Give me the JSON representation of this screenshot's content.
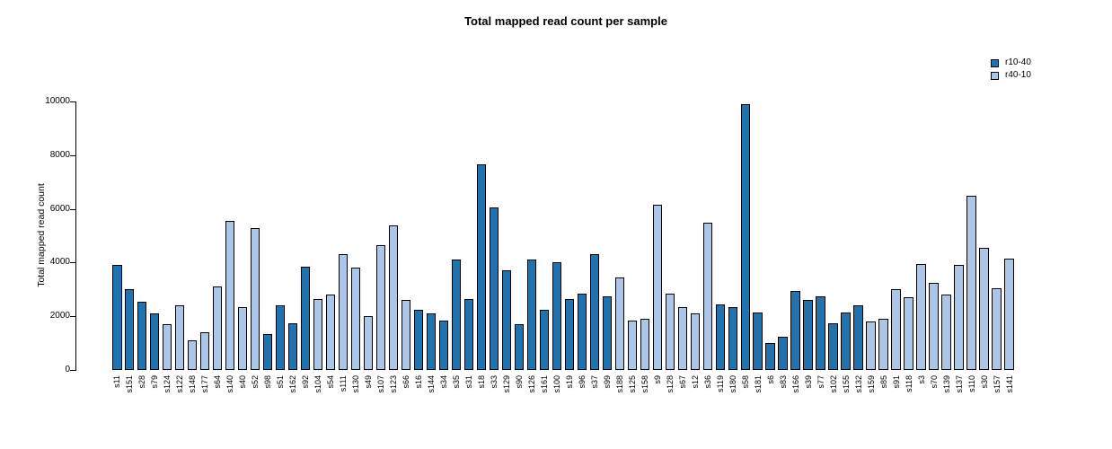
{
  "title": "Total mapped read count per sample",
  "y_axis": {
    "label": "Total mapped read count",
    "ticks": [
      0,
      2000,
      4000,
      6000,
      8000,
      10000
    ]
  },
  "chart_data": {
    "type": "bar",
    "title": "Total mapped read count per sample",
    "xlabel": "",
    "ylabel": "Total mapped read count",
    "ylim": [
      0,
      10000
    ],
    "yticks": [
      0,
      2000,
      4000,
      6000,
      8000,
      10000
    ],
    "grid": false,
    "legend_position": "top-right",
    "series": [
      {
        "name": "r10-40",
        "color": "#2173b0"
      },
      {
        "name": "r40-10",
        "color": "#abc6e8"
      }
    ],
    "bars": [
      {
        "label": "s11",
        "value": 3900,
        "series": "r10-40"
      },
      {
        "label": "s151",
        "value": 3000,
        "series": "r10-40"
      },
      {
        "label": "s28",
        "value": 2550,
        "series": "r10-40"
      },
      {
        "label": "s79",
        "value": 2100,
        "series": "r10-40"
      },
      {
        "label": "s124",
        "value": 1700,
        "series": "r40-10"
      },
      {
        "label": "s122",
        "value": 2400,
        "series": "r40-10"
      },
      {
        "label": "s148",
        "value": 1100,
        "series": "r40-10"
      },
      {
        "label": "s177",
        "value": 1400,
        "series": "r40-10"
      },
      {
        "label": "s64",
        "value": 3100,
        "series": "r40-10"
      },
      {
        "label": "s140",
        "value": 5550,
        "series": "r40-10"
      },
      {
        "label": "s40",
        "value": 2350,
        "series": "r40-10"
      },
      {
        "label": "s52",
        "value": 5300,
        "series": "r40-10"
      },
      {
        "label": "s98",
        "value": 1350,
        "series": "r10-40"
      },
      {
        "label": "s51",
        "value": 2400,
        "series": "r10-40"
      },
      {
        "label": "s162",
        "value": 1750,
        "series": "r10-40"
      },
      {
        "label": "s92",
        "value": 3850,
        "series": "r10-40"
      },
      {
        "label": "s104",
        "value": 2650,
        "series": "r40-10"
      },
      {
        "label": "s54",
        "value": 2800,
        "series": "r40-10"
      },
      {
        "label": "s111",
        "value": 4300,
        "series": "r40-10"
      },
      {
        "label": "s130",
        "value": 3800,
        "series": "r40-10"
      },
      {
        "label": "s49",
        "value": 2000,
        "series": "r40-10"
      },
      {
        "label": "s107",
        "value": 4650,
        "series": "r40-10"
      },
      {
        "label": "s123",
        "value": 5400,
        "series": "r40-10"
      },
      {
        "label": "s66",
        "value": 2600,
        "series": "r40-10"
      },
      {
        "label": "s16",
        "value": 2250,
        "series": "r10-40"
      },
      {
        "label": "s144",
        "value": 2100,
        "series": "r10-40"
      },
      {
        "label": "s34",
        "value": 1850,
        "series": "r10-40"
      },
      {
        "label": "s35",
        "value": 4100,
        "series": "r10-40"
      },
      {
        "label": "s31",
        "value": 2650,
        "series": "r10-40"
      },
      {
        "label": "s18",
        "value": 7650,
        "series": "r10-40"
      },
      {
        "label": "s33",
        "value": 6050,
        "series": "r10-40"
      },
      {
        "label": "s129",
        "value": 3700,
        "series": "r10-40"
      },
      {
        "label": "s90",
        "value": 1700,
        "series": "r10-40"
      },
      {
        "label": "s126",
        "value": 4100,
        "series": "r10-40"
      },
      {
        "label": "s161",
        "value": 2250,
        "series": "r10-40"
      },
      {
        "label": "s100",
        "value": 4000,
        "series": "r10-40"
      },
      {
        "label": "s19",
        "value": 2650,
        "series": "r10-40"
      },
      {
        "label": "s96",
        "value": 2850,
        "series": "r10-40"
      },
      {
        "label": "s37",
        "value": 4300,
        "series": "r10-40"
      },
      {
        "label": "s99",
        "value": 2750,
        "series": "r10-40"
      },
      {
        "label": "s188",
        "value": 3450,
        "series": "r40-10"
      },
      {
        "label": "s125",
        "value": 1850,
        "series": "r40-10"
      },
      {
        "label": "s158",
        "value": 1900,
        "series": "r40-10"
      },
      {
        "label": "s9",
        "value": 6150,
        "series": "r40-10"
      },
      {
        "label": "s128",
        "value": 2850,
        "series": "r40-10"
      },
      {
        "label": "s67",
        "value": 2350,
        "series": "r40-10"
      },
      {
        "label": "s12",
        "value": 2100,
        "series": "r40-10"
      },
      {
        "label": "s36",
        "value": 5500,
        "series": "r40-10"
      },
      {
        "label": "s119",
        "value": 2450,
        "series": "r10-40"
      },
      {
        "label": "s180",
        "value": 2350,
        "series": "r10-40"
      },
      {
        "label": "s58",
        "value": 9900,
        "series": "r10-40"
      },
      {
        "label": "s181",
        "value": 2150,
        "series": "r10-40"
      },
      {
        "label": "s6",
        "value": 1000,
        "series": "r10-40"
      },
      {
        "label": "s83",
        "value": 1250,
        "series": "r10-40"
      },
      {
        "label": "s166",
        "value": 2950,
        "series": "r10-40"
      },
      {
        "label": "s39",
        "value": 2600,
        "series": "r10-40"
      },
      {
        "label": "s77",
        "value": 2750,
        "series": "r10-40"
      },
      {
        "label": "s102",
        "value": 1750,
        "series": "r10-40"
      },
      {
        "label": "s155",
        "value": 2150,
        "series": "r10-40"
      },
      {
        "label": "s132",
        "value": 2400,
        "series": "r10-40"
      },
      {
        "label": "s159",
        "value": 1800,
        "series": "r40-10"
      },
      {
        "label": "s85",
        "value": 1900,
        "series": "r40-10"
      },
      {
        "label": "s91",
        "value": 3000,
        "series": "r40-10"
      },
      {
        "label": "s118",
        "value": 2700,
        "series": "r40-10"
      },
      {
        "label": "s3",
        "value": 3950,
        "series": "r40-10"
      },
      {
        "label": "s70",
        "value": 3250,
        "series": "r40-10"
      },
      {
        "label": "s139",
        "value": 2800,
        "series": "r40-10"
      },
      {
        "label": "s137",
        "value": 3900,
        "series": "r40-10"
      },
      {
        "label": "s110",
        "value": 6500,
        "series": "r40-10"
      },
      {
        "label": "s30",
        "value": 4550,
        "series": "r40-10"
      },
      {
        "label": "s157",
        "value": 3050,
        "series": "r40-10"
      },
      {
        "label": "s141",
        "value": 4150,
        "series": "r40-10"
      }
    ]
  }
}
